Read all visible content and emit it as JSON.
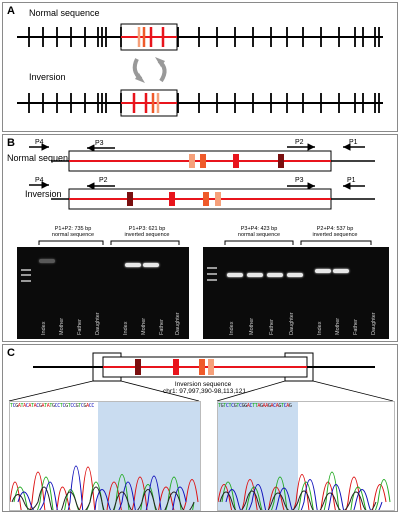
{
  "panel_a": {
    "label": "A",
    "normal_title": "Normal sequence",
    "inversion_title": "Inversion"
  },
  "panel_b": {
    "label": "B",
    "normal_title": "Normal sequence",
    "inversion_title": "Inversion",
    "primers_normal": [
      "P4",
      "P3",
      "P2",
      "P1"
    ],
    "primers_inversion": [
      "P4",
      "P2",
      "P3",
      "P1"
    ],
    "gel_left": {
      "header1_line1": "P1+P2: 735 bp",
      "header1_line2": "normal sequence",
      "header2_line1": "P1+P3: 621 bp",
      "header2_line2": "inverted sequence",
      "lanes": [
        "Index",
        "Mother",
        "Father",
        "Daughter",
        "Index",
        "Mother",
        "Father",
        "Daughter"
      ]
    },
    "gel_right": {
      "header1_line1": "P3+P4: 423 bp",
      "header1_line2": "normal sequence",
      "header2_line1": "P2+P4: 537 bp",
      "header2_line2": "inverted sequence",
      "lanes": [
        "Index",
        "Mother",
        "Father",
        "Daughter",
        "Index",
        "Mother",
        "Father",
        "Daughter"
      ]
    }
  },
  "panel_c": {
    "label": "C",
    "caption_line1": "Inversion sequence",
    "caption_line2": "chr1: 97,997,390-98,113,121"
  },
  "colors": {
    "dark_red": "#7a0f0f",
    "red": "#e8141c",
    "orange_red": "#ef5a2a",
    "salmon": "#f6a07a",
    "highlight": "#c9dcf0"
  }
}
